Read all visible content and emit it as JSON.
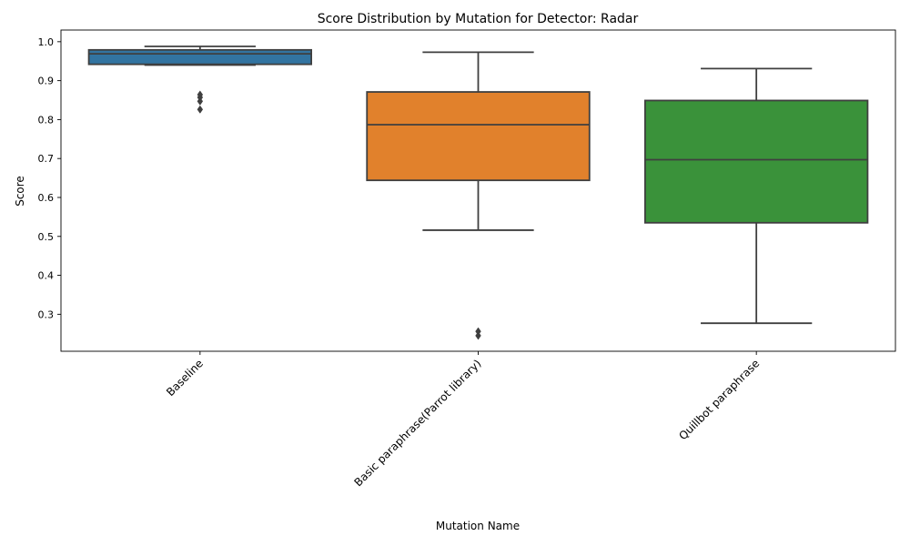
{
  "chart_data": {
    "type": "box",
    "title": "Score Distribution by Mutation for Detector: Radar",
    "xlabel": "Mutation Name",
    "ylabel": "Score",
    "ylim": [
      0.205,
      1.03
    ],
    "yticks": [
      "0.3",
      "0.4",
      "0.5",
      "0.6",
      "0.7",
      "0.8",
      "0.9",
      "1.0"
    ],
    "grid": false,
    "categories": [
      "Baseline",
      "Basic paraphrase(Parrot library)",
      "Quillbot paraphrase"
    ],
    "boxes": [
      {
        "category": "Baseline",
        "color": "#3274a1",
        "whisker_low": 0.94,
        "q1": 0.942,
        "median": 0.969,
        "q3": 0.979,
        "whisker_high": 0.988,
        "outliers": [
          0.826,
          0.847,
          0.857,
          0.864
        ]
      },
      {
        "category": "Basic paraphrase(Parrot library)",
        "color": "#e1812c",
        "whisker_low": 0.516,
        "q1": 0.644,
        "median": 0.787,
        "q3": 0.871,
        "whisker_high": 0.973,
        "outliers": [
          0.245,
          0.256
        ]
      },
      {
        "category": "Quillbot paraphrase",
        "color": "#3a923a",
        "whisker_low": 0.277,
        "q1": 0.535,
        "median": 0.697,
        "q3": 0.849,
        "whisker_high": 0.931,
        "outliers": []
      }
    ]
  }
}
